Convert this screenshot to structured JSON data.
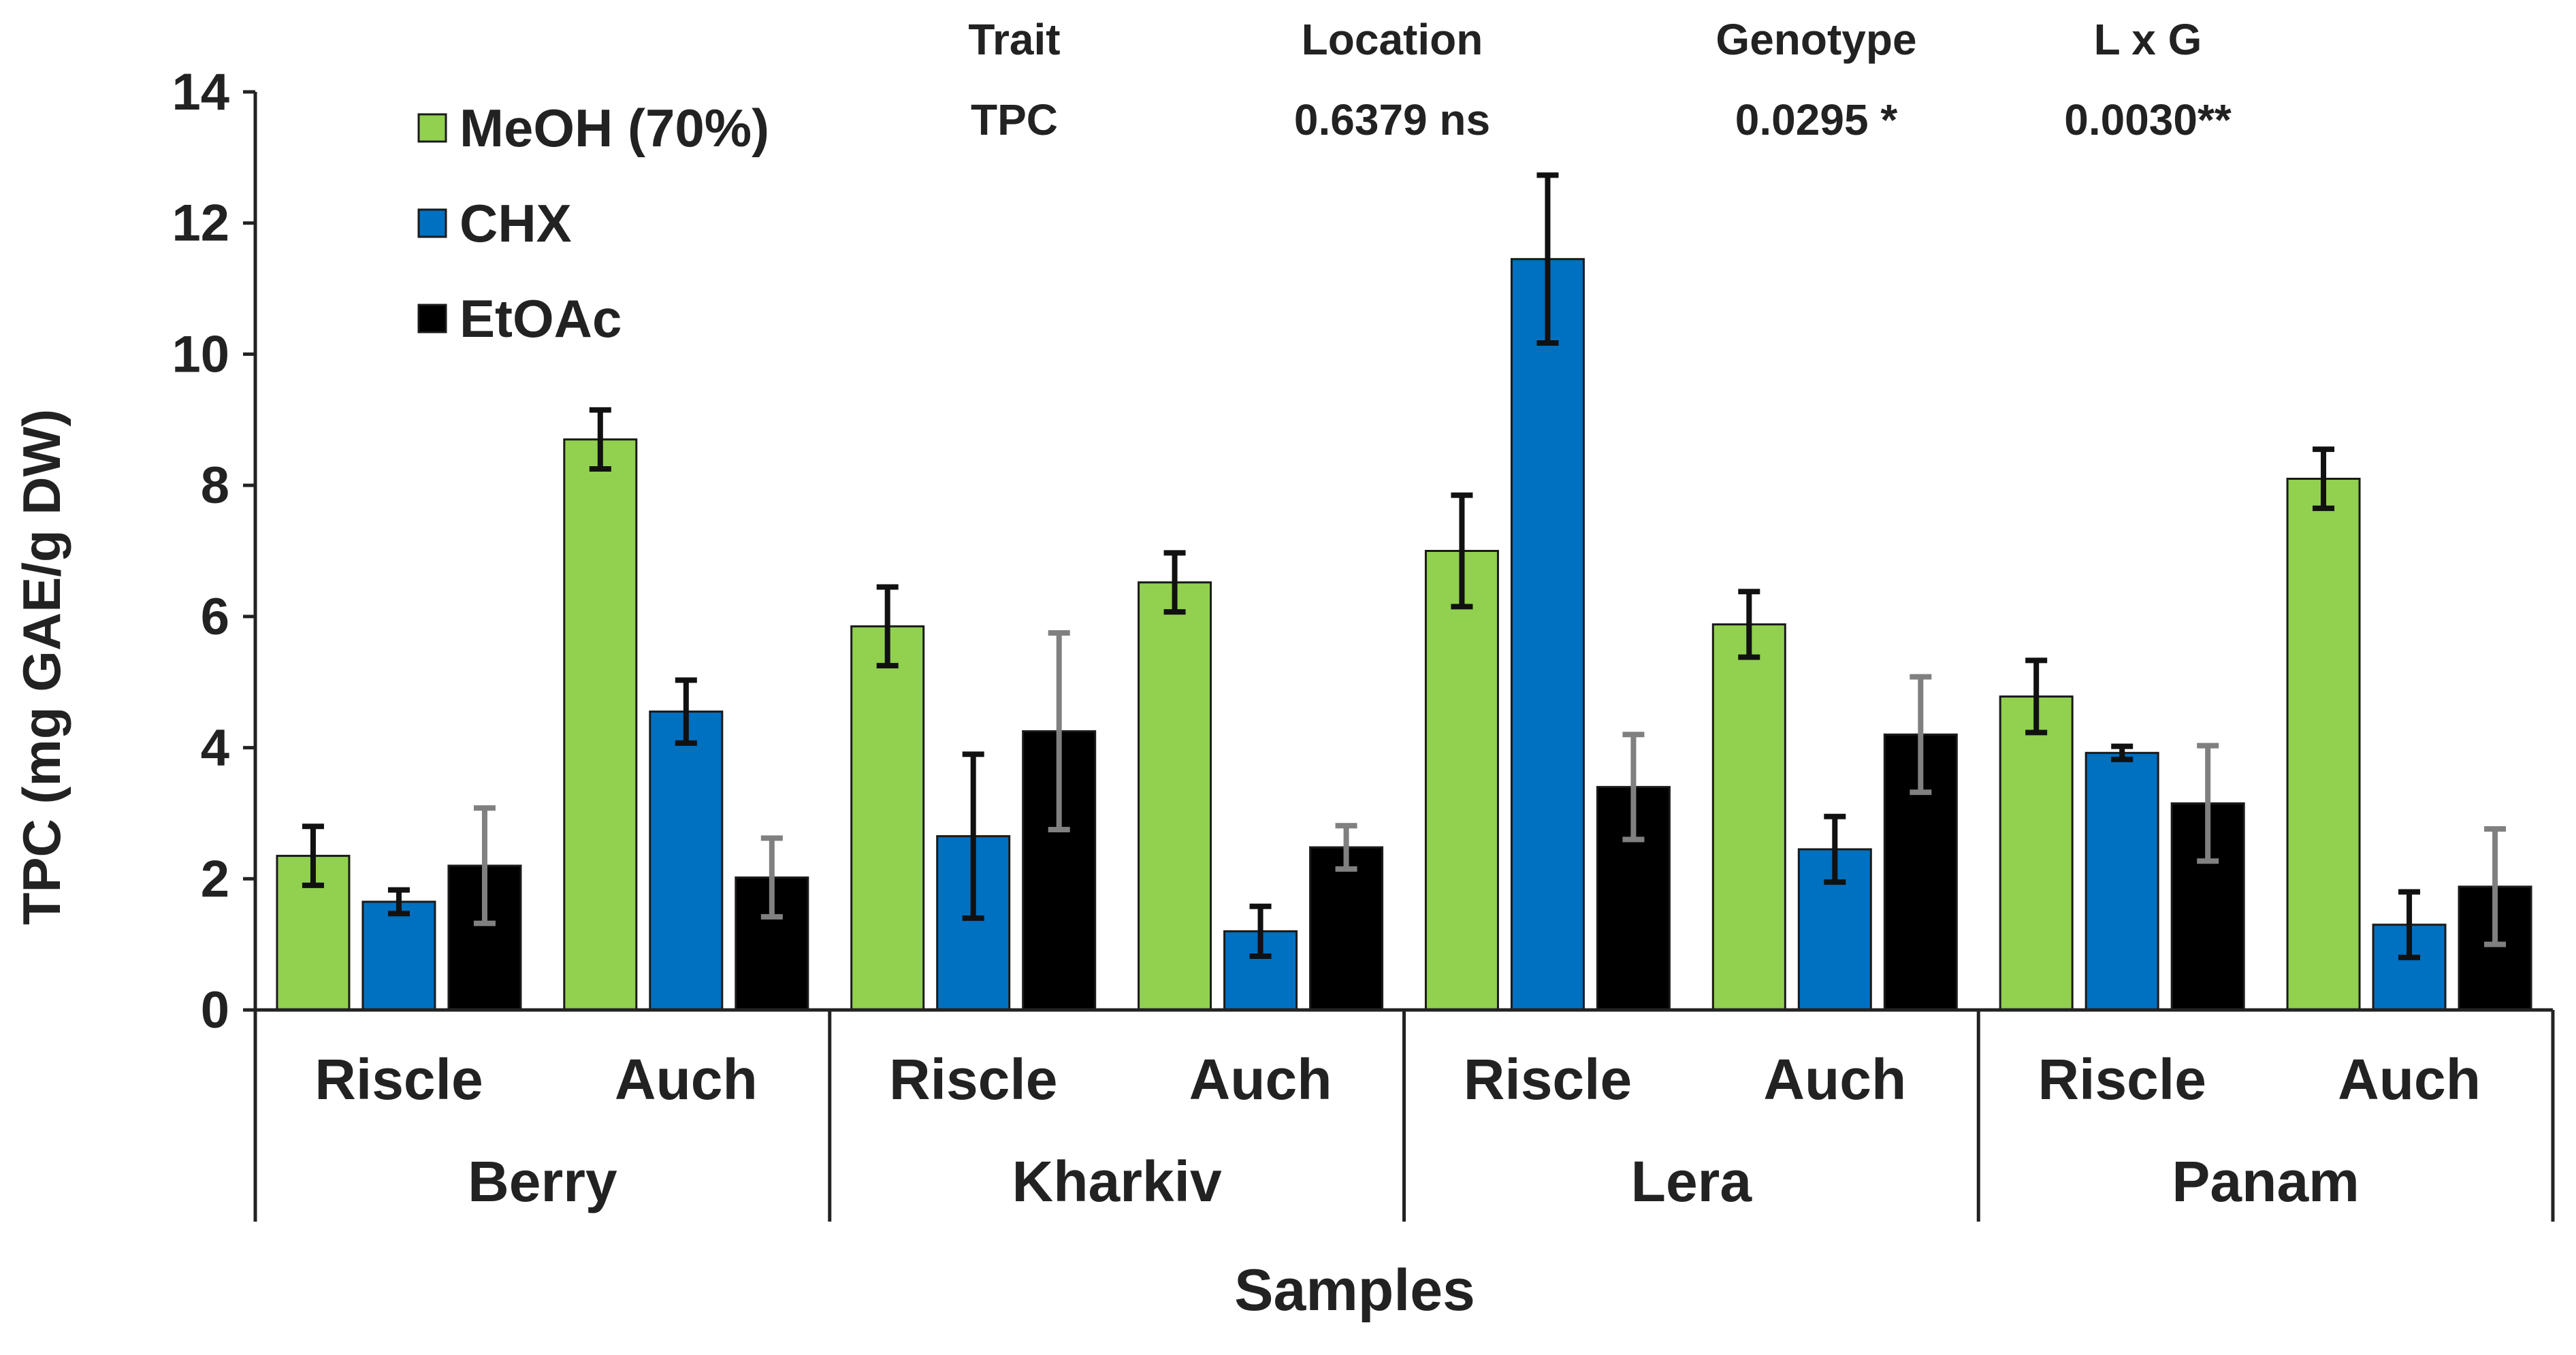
{
  "chart_data": {
    "type": "bar",
    "title": "",
    "xlabel": "Samples",
    "ylabel": "TPC (mg GAE/g DW)",
    "ylim": [
      0,
      14
    ],
    "yticks": [
      0,
      2,
      4,
      6,
      8,
      10,
      12,
      14
    ],
    "grid": false,
    "legend_position": "top-left",
    "groups": [
      "Berry",
      "Kharkiv",
      "Lera",
      "Panam"
    ],
    "locations": [
      "Riscle",
      "Auch"
    ],
    "categories": [
      "Berry Riscle",
      "Berry Auch",
      "Kharkiv Riscle",
      "Kharkiv Auch",
      "Lera Riscle",
      "Lera Auch",
      "Panam Riscle",
      "Panam Auch"
    ],
    "series": [
      {
        "name": "MeOH (70%)",
        "color": "#92d050",
        "error_color": "#111111",
        "values": [
          2.35,
          8.7,
          5.85,
          6.52,
          7.0,
          5.88,
          4.78,
          8.1
        ],
        "errors": [
          0.45,
          0.45,
          0.6,
          0.45,
          0.85,
          0.5,
          0.55,
          0.45
        ]
      },
      {
        "name": "CHX",
        "color": "#0070c0",
        "error_color": "#111111",
        "values": [
          1.65,
          4.55,
          2.65,
          1.2,
          11.45,
          2.45,
          3.92,
          1.3
        ],
        "errors": [
          0.18,
          0.48,
          1.25,
          0.38,
          1.28,
          0.5,
          0.1,
          0.5
        ]
      },
      {
        "name": "EtOAc",
        "color": "#000000",
        "error_color": "#808080",
        "values": [
          2.2,
          2.02,
          4.25,
          2.48,
          3.4,
          4.2,
          3.15,
          1.88
        ],
        "errors": [
          0.88,
          0.6,
          1.5,
          0.33,
          0.8,
          0.88,
          0.88,
          0.88
        ]
      }
    ],
    "stats_table": {
      "headers": [
        "Trait",
        "Location",
        "Genotype",
        "L x G"
      ],
      "row": [
        "TPC",
        "0.6379 ns",
        "0.0295 *",
        "0.0030**"
      ]
    }
  }
}
